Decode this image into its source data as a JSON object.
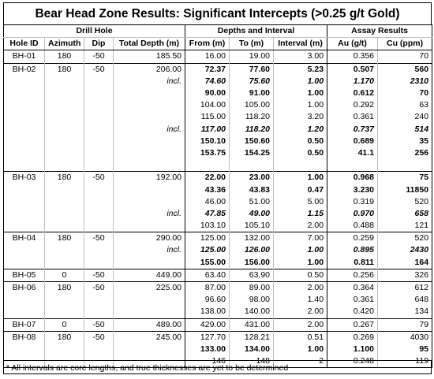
{
  "title": "Bear Head Zone Results: Significant Intercepts (>0.25 g/t Gold)",
  "groups": {
    "drill_hole": "Drill Hole",
    "depths": "Depths and Interval",
    "assay": "Assay Results"
  },
  "columns": [
    "Hole ID",
    "Azimuth",
    "Dip",
    "Total Depth (m)",
    "From (m)",
    "To (m)",
    "Interval (m)",
    "Au (g/t)",
    "Cu (ppm)"
  ],
  "rows": [
    {
      "hole": "BH-01",
      "az": "180",
      "dip": "-50",
      "total": "185.50",
      "incl": "",
      "from": "16.00",
      "to": "19.00",
      "interval": "3.00",
      "au": "0.356",
      "cu": "70",
      "style": "n",
      "gt": true
    },
    {
      "hole": "BH-02",
      "az": "180",
      "dip": "-50",
      "total": "206.00",
      "incl": "",
      "from": "72.37",
      "to": "77.60",
      "interval": "5.23",
      "au": "0.507",
      "cu": "560",
      "style": "b",
      "gt": true
    },
    {
      "hole": "",
      "az": "",
      "dip": "",
      "total": "",
      "incl": "incl.",
      "from": "74.60",
      "to": "75.60",
      "interval": "1.00",
      "au": "1.170",
      "cu": "2310",
      "style": "bi",
      "gt": false
    },
    {
      "hole": "",
      "az": "",
      "dip": "",
      "total": "",
      "incl": "",
      "from": "90.00",
      "to": "91.00",
      "interval": "1.00",
      "au": "0.612",
      "cu": "70",
      "style": "b",
      "gt": false
    },
    {
      "hole": "",
      "az": "",
      "dip": "",
      "total": "",
      "incl": "",
      "from": "104.00",
      "to": "105.00",
      "interval": "1.00",
      "au": "0.292",
      "cu": "63",
      "style": "n",
      "gt": false
    },
    {
      "hole": "",
      "az": "",
      "dip": "",
      "total": "",
      "incl": "",
      "from": "115.00",
      "to": "118.20",
      "interval": "3.20",
      "au": "0.361",
      "cu": "240",
      "style": "n",
      "gt": false
    },
    {
      "hole": "",
      "az": "",
      "dip": "",
      "total": "",
      "incl": "incl.",
      "from": "117.00",
      "to": "118.20",
      "interval": "1.20",
      "au": "0.737",
      "cu": "514",
      "style": "bi",
      "gt": false
    },
    {
      "hole": "",
      "az": "",
      "dip": "",
      "total": "",
      "incl": "",
      "from": "150.10",
      "to": "150.60",
      "interval": "0.50",
      "au": "0.689",
      "cu": "35",
      "style": "b",
      "gt": false
    },
    {
      "hole": "",
      "az": "",
      "dip": "",
      "total": "",
      "incl": "",
      "from": "153.75",
      "to": "154.25",
      "interval": "0.50",
      "au": "41.1",
      "cu": "256",
      "style": "b",
      "gt": false
    },
    {
      "hole": "",
      "az": "",
      "dip": "",
      "total": "",
      "incl": "",
      "from": "",
      "to": "",
      "interval": "",
      "au": "",
      "cu": "",
      "style": "n",
      "gt": false
    },
    {
      "hole": "BH-03",
      "az": "180",
      "dip": "-50",
      "total": "192.00",
      "incl": "",
      "from": "22.00",
      "to": "23.00",
      "interval": "1.00",
      "au": "0.968",
      "cu": "75",
      "style": "b",
      "gt": true
    },
    {
      "hole": "",
      "az": "",
      "dip": "",
      "total": "",
      "incl": "",
      "from": "43.36",
      "to": "43.83",
      "interval": "0.47",
      "au": "3.230",
      "cu": "11850",
      "style": "b",
      "gt": false
    },
    {
      "hole": "",
      "az": "",
      "dip": "",
      "total": "",
      "incl": "",
      "from": "46.00",
      "to": "51.00",
      "interval": "5.00",
      "au": "0.319",
      "cu": "520",
      "style": "n",
      "gt": false
    },
    {
      "hole": "",
      "az": "",
      "dip": "",
      "total": "",
      "incl": "incl.",
      "from": "47.85",
      "to": "49.00",
      "interval": "1.15",
      "au": "0.970",
      "cu": "658",
      "style": "bi",
      "gt": false
    },
    {
      "hole": "",
      "az": "",
      "dip": "",
      "total": "",
      "incl": "",
      "from": "103.10",
      "to": "105.10",
      "interval": "2.00",
      "au": "0.488",
      "cu": "121",
      "style": "n",
      "gt": false
    },
    {
      "hole": "BH-04",
      "az": "180",
      "dip": "-50",
      "total": "290.00",
      "incl": "",
      "from": "125.00",
      "to": "132.00",
      "interval": "7.00",
      "au": "0.259",
      "cu": "520",
      "style": "n",
      "gt": true
    },
    {
      "hole": "",
      "az": "",
      "dip": "",
      "total": "",
      "incl": "incl.",
      "from": "125.00",
      "to": "126.00",
      "interval": "1.00",
      "au": "0.895",
      "cu": "2430",
      "style": "bi",
      "gt": false
    },
    {
      "hole": "",
      "az": "",
      "dip": "",
      "total": "",
      "incl": "",
      "from": "155.00",
      "to": "156.00",
      "interval": "1.00",
      "au": "0.811",
      "cu": "164",
      "style": "b",
      "gt": false
    },
    {
      "hole": "BH-05",
      "az": "0",
      "dip": "-50",
      "total": "449.00",
      "incl": "",
      "from": "63.40",
      "to": "63.90",
      "interval": "0.50",
      "au": "0.256",
      "cu": "326",
      "style": "n",
      "gt": true
    },
    {
      "hole": "BH-06",
      "az": "180",
      "dip": "-50",
      "total": "225.00",
      "incl": "",
      "from": "87.00",
      "to": "89.00",
      "interval": "2.00",
      "au": "0.364",
      "cu": "612",
      "style": "n",
      "gt": true
    },
    {
      "hole": "",
      "az": "",
      "dip": "",
      "total": "",
      "incl": "",
      "from": "96.60",
      "to": "98.00",
      "interval": "1.40",
      "au": "0.361",
      "cu": "648",
      "style": "n",
      "gt": false
    },
    {
      "hole": "",
      "az": "",
      "dip": "",
      "total": "",
      "incl": "",
      "from": "138.00",
      "to": "140.00",
      "interval": "2.00",
      "au": "0.420",
      "cu": "134",
      "style": "n",
      "gt": false
    },
    {
      "hole": "BH-07",
      "az": "0",
      "dip": "-50",
      "total": "489.00",
      "incl": "",
      "from": "429.00",
      "to": "431.00",
      "interval": "2.00",
      "au": "0.267",
      "cu": "79",
      "style": "n",
      "gt": true
    },
    {
      "hole": "BH-08",
      "az": "180",
      "dip": "-50",
      "total": "245.00",
      "incl": "",
      "from": "127.70",
      "to": "128.21",
      "interval": "0.51",
      "au": "0.269",
      "cu": "4030",
      "style": "n",
      "gt": true
    },
    {
      "hole": "",
      "az": "",
      "dip": "",
      "total": "",
      "incl": "",
      "from": "133.00",
      "to": "134.00",
      "interval": "1.00",
      "au": "1.100",
      "cu": "95",
      "style": "b",
      "gt": false
    },
    {
      "hole": "",
      "az": "",
      "dip": "",
      "total": "",
      "incl": "",
      "from": "146",
      "to": "148",
      "interval": "2",
      "au": "0.248",
      "cu": "119",
      "style": "n",
      "gt": false
    }
  ],
  "footnote": "* All intervals are core lengths, and true thicknesses are yet to be determined"
}
